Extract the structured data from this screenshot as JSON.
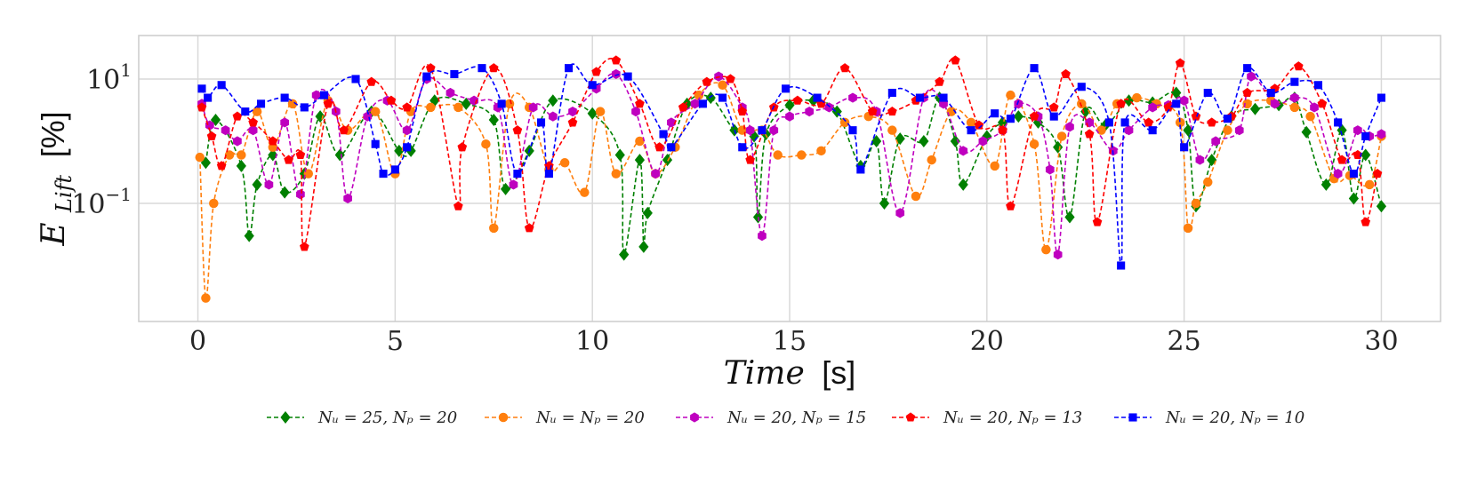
{
  "chart_data": {
    "type": "line",
    "title": "",
    "xlabel": {
      "var": "Time",
      "unit": "[s]"
    },
    "ylabel": {
      "var": "E",
      "sub": "Lift",
      "unit": "[%]"
    },
    "xlim": [
      -1.5,
      31.5
    ],
    "ylim_log10": [
      -2.9,
      1.7
    ],
    "yscale": "log",
    "grid": true,
    "legend_placement": "bottom-center",
    "xticks": [
      "0",
      "5",
      "10",
      "15",
      "20",
      "25",
      "30"
    ],
    "yticks": [
      {
        "value": 10,
        "base": "10",
        "exp": "1"
      },
      {
        "value": 0.1,
        "base": "10",
        "exp": "−1"
      }
    ],
    "series": [
      {
        "name": "N_u = 25, N_p = 20",
        "label": "Nᵤ = 25, Nₚ = 20",
        "color": "#008000",
        "marker": "diamond",
        "x": [
          0.2,
          0.45,
          1.1,
          1.3,
          1.5,
          1.9,
          2.2,
          2.7,
          3.1,
          3.6,
          4.4,
          5.1,
          5.4,
          6.0,
          6.8,
          7.5,
          7.8,
          8.4,
          9.0,
          10.0,
          10.7,
          10.8,
          11.2,
          11.3,
          11.4,
          11.9,
          12.4,
          13.0,
          13.6,
          14.1,
          14.2,
          14.4,
          15.0,
          15.6,
          16.2,
          16.8,
          17.2,
          17.4,
          17.8,
          18.4,
          18.8,
          19.2,
          19.4,
          20.0,
          20.4,
          20.8,
          21.3,
          21.8,
          22.1,
          22.5,
          23.0,
          23.6,
          24.2,
          24.8,
          25.1,
          25.3,
          25.7,
          26.2,
          26.8,
          27.4,
          27.8,
          28.1,
          28.6,
          29.0,
          29.3,
          29.6,
          30.0
        ],
        "y": [
          0.45,
          2.2,
          0.4,
          0.03,
          0.2,
          0.6,
          0.15,
          0.3,
          2.5,
          0.6,
          3.0,
          0.7,
          0.7,
          4.5,
          4.0,
          2.2,
          0.17,
          0.7,
          4.5,
          2.8,
          0.6,
          0.015,
          0.5,
          0.02,
          0.07,
          0.5,
          4.0,
          5.0,
          1.5,
          1.2,
          0.06,
          1.3,
          3.8,
          4.5,
          3.0,
          0.4,
          1.0,
          0.1,
          1.1,
          1.0,
          5.0,
          1.0,
          0.2,
          1.2,
          2.0,
          2.5,
          2.0,
          0.8,
          0.06,
          3.0,
          1.8,
          4.5,
          4.2,
          6.0,
          1.5,
          0.09,
          0.5,
          2.5,
          3.3,
          3.8,
          5.0,
          1.4,
          0.2,
          1.5,
          0.12,
          0.6,
          0.09
        ]
      },
      {
        "name": "N_u = N_p = 20",
        "label": "Nᵤ = Nₚ = 20",
        "color": "#ff7f0e",
        "marker": "circle",
        "x": [
          0.05,
          0.2,
          0.4,
          0.8,
          1.1,
          1.5,
          1.9,
          2.4,
          2.8,
          3.3,
          3.8,
          4.5,
          5.0,
          5.4,
          5.9,
          6.6,
          7.3,
          7.5,
          7.9,
          8.4,
          8.9,
          9.3,
          9.8,
          10.2,
          10.6,
          11.2,
          11.6,
          12.1,
          12.7,
          13.3,
          13.8,
          14.3,
          14.7,
          15.3,
          15.8,
          16.4,
          17.0,
          17.6,
          18.2,
          18.6,
          19.1,
          19.6,
          20.2,
          20.6,
          21.2,
          21.5,
          21.9,
          22.4,
          22.9,
          23.3,
          23.8,
          24.3,
          24.9,
          25.1,
          25.3,
          25.6,
          26.1,
          26.6,
          27.2,
          27.8,
          28.2,
          28.8,
          29.2,
          29.7,
          30.0
        ],
        "y": [
          0.55,
          0.003,
          0.1,
          0.6,
          0.6,
          3.0,
          0.8,
          4.0,
          0.3,
          4.5,
          1.5,
          3.0,
          0.3,
          3.0,
          3.5,
          3.5,
          0.9,
          0.04,
          4.0,
          3.5,
          0.35,
          0.45,
          0.15,
          3.0,
          0.3,
          1.0,
          0.3,
          0.8,
          5.5,
          8.0,
          1.5,
          1.5,
          0.6,
          0.6,
          0.7,
          2.0,
          2.5,
          1.5,
          0.13,
          0.5,
          3.0,
          2.0,
          0.4,
          5.5,
          0.9,
          0.018,
          1.2,
          4.0,
          1.5,
          4.0,
          5.0,
          4.0,
          2.0,
          0.04,
          0.1,
          0.22,
          1.5,
          4.0,
          4.5,
          3.5,
          2.5,
          0.25,
          0.28,
          0.2,
          1.2
        ]
      },
      {
        "name": "N_u = 20, N_p = 15",
        "label": "Nᵤ = 20, Nₚ = 15",
        "color": "#bf00bf",
        "marker": "hexagon",
        "x": [
          0.1,
          0.3,
          0.7,
          1.0,
          1.4,
          1.8,
          2.2,
          2.6,
          3.0,
          3.5,
          3.8,
          4.3,
          4.8,
          5.3,
          5.8,
          6.4,
          7.0,
          7.6,
          8.0,
          8.5,
          9.0,
          9.5,
          10.1,
          10.6,
          11.1,
          11.6,
          12.0,
          12.6,
          13.2,
          13.8,
          14.0,
          14.3,
          14.6,
          15.0,
          15.5,
          16.0,
          16.6,
          17.2,
          17.8,
          18.4,
          18.9,
          19.4,
          19.9,
          20.4,
          20.8,
          21.3,
          21.6,
          21.8,
          22.1,
          22.6,
          23.2,
          23.6,
          24.2,
          24.6,
          25.0,
          25.4,
          25.8,
          26.4,
          26.7,
          27.3,
          27.8,
          28.3,
          28.9,
          29.4,
          29.7,
          30.0
        ],
        "y": [
          4.0,
          1.8,
          1.5,
          1.0,
          1.5,
          0.2,
          2.0,
          0.14,
          5.5,
          3.0,
          0.12,
          2.5,
          4.5,
          1.5,
          10.0,
          6.0,
          4.5,
          3.5,
          0.2,
          3.5,
          2.5,
          3.0,
          7.0,
          12.0,
          3.0,
          0.3,
          2.0,
          4.0,
          11.0,
          3.5,
          1.5,
          0.03,
          1.5,
          2.5,
          3.0,
          3.5,
          5.0,
          3.0,
          0.07,
          5.0,
          4.0,
          0.7,
          1.0,
          1.5,
          4.0,
          2.5,
          0.35,
          0.015,
          1.7,
          2.0,
          0.7,
          1.5,
          3.5,
          3.8,
          4.5,
          0.5,
          1.0,
          1.5,
          11.0,
          4.0,
          5.0,
          3.5,
          0.3,
          1.5,
          1.2,
          1.3
        ]
      },
      {
        "name": "N_u = 20, N_p = 13",
        "label": "Nᵤ = 20, Nₚ = 13",
        "color": "#ff0000",
        "marker": "pentagon",
        "x": [
          0.1,
          0.35,
          0.6,
          1.0,
          1.4,
          1.9,
          2.3,
          2.6,
          2.7,
          3.3,
          3.7,
          4.4,
          4.9,
          5.3,
          5.9,
          6.6,
          6.7,
          7.5,
          8.1,
          8.4,
          8.9,
          9.5,
          10.1,
          10.6,
          11.2,
          11.7,
          12.3,
          12.9,
          13.5,
          13.8,
          14.0,
          14.6,
          15.2,
          15.8,
          16.4,
          17.1,
          17.6,
          18.2,
          18.8,
          19.2,
          19.8,
          20.4,
          20.6,
          21.2,
          21.7,
          22.0,
          22.6,
          22.8,
          23.4,
          24.1,
          24.6,
          24.9,
          25.3,
          25.7,
          26.2,
          26.6,
          27.3,
          27.9,
          28.5,
          29.0,
          29.4,
          29.6,
          29.9
        ],
        "y": [
          3.5,
          1.2,
          0.4,
          2.5,
          2.0,
          1.0,
          0.5,
          0.6,
          0.02,
          4.0,
          1.5,
          9.0,
          4.5,
          3.5,
          15.0,
          0.09,
          0.8,
          15.0,
          1.5,
          0.04,
          0.4,
          2.0,
          13.0,
          20.0,
          4.0,
          0.8,
          3.5,
          9.0,
          10.0,
          3.0,
          0.5,
          3.5,
          4.5,
          4.0,
          15.0,
          3.0,
          3.0,
          4.5,
          9.0,
          20.0,
          1.8,
          1.5,
          0.09,
          2.5,
          3.5,
          12.0,
          1.3,
          0.05,
          4.0,
          2.0,
          3.5,
          18.0,
          2.5,
          2.0,
          2.5,
          6.0,
          7.0,
          16.0,
          4.0,
          0.5,
          0.6,
          0.05,
          0.3
        ]
      },
      {
        "name": "N_u = 20, N_p = 10",
        "label": "Nᵤ = 20, Nₚ = 10",
        "color": "#0000ff",
        "marker": "square",
        "x": [
          0.1,
          0.25,
          0.6,
          1.2,
          1.6,
          2.2,
          2.7,
          3.2,
          4.0,
          4.5,
          4.7,
          5.0,
          5.3,
          5.8,
          6.5,
          7.2,
          7.7,
          8.1,
          8.7,
          8.9,
          9.4,
          10.0,
          10.9,
          11.8,
          12.0,
          12.8,
          13.3,
          13.8,
          14.3,
          14.9,
          15.7,
          16.6,
          16.8,
          17.6,
          18.3,
          18.9,
          19.6,
          20.2,
          20.6,
          21.2,
          21.7,
          22.4,
          23.1,
          23.4,
          23.5,
          24.2,
          24.8,
          25.0,
          25.6,
          26.1,
          26.6,
          27.2,
          27.8,
          28.4,
          28.9,
          29.3,
          29.6,
          30.0
        ],
        "y": [
          7.0,
          5.0,
          8.0,
          3.0,
          4.0,
          5.0,
          3.5,
          5.5,
          10.0,
          0.9,
          0.3,
          0.35,
          0.8,
          11.0,
          12.0,
          15.0,
          4.0,
          0.3,
          2.0,
          0.3,
          15.0,
          8.0,
          11.0,
          1.3,
          0.8,
          4.0,
          5.0,
          0.8,
          1.5,
          7.0,
          5.0,
          1.5,
          0.35,
          6.0,
          5.0,
          5.0,
          1.5,
          2.8,
          2.3,
          15.0,
          2.5,
          7.5,
          2.0,
          0.01,
          2.0,
          1.5,
          4.0,
          0.8,
          6.0,
          2.3,
          15.0,
          6.0,
          9.0,
          8.0,
          2.0,
          0.3,
          1.2,
          5.0
        ]
      }
    ]
  }
}
